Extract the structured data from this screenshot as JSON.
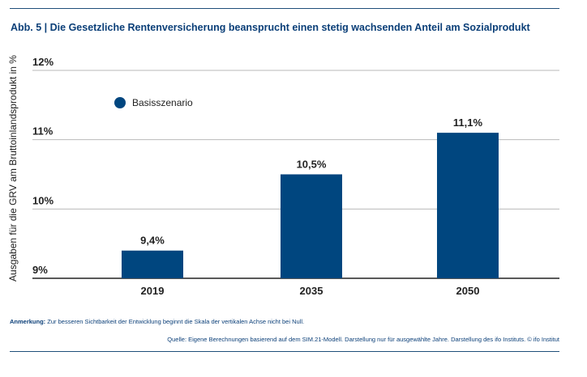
{
  "figure": {
    "title": "Abb. 5 | Die Gesetzliche Rentenversicherung beansprucht einen stetig wachsenden Anteil am Sozialprodukt",
    "note_label": "Anmerkung:",
    "note_text": "Zur besseren Sichtbarkeit der Entwicklung beginnt die Skala der vertikalen Achse nicht bei Null.",
    "source": "Quelle: Eigene Berechnungen basierend auf dem SIM.21-Modell. Darstellung nur für ausgewählte Jahre. Darstellung des ifo Instituts. © ifo Institut"
  },
  "colors": {
    "bar": "#00467f",
    "title": "#0b3f78",
    "grid": "#b9b9b9"
  },
  "chart_data": {
    "type": "bar",
    "categories": [
      "2019",
      "2035",
      "2050"
    ],
    "series": [
      {
        "name": "Basisszenario",
        "values": [
          9.4,
          10.5,
          11.1
        ]
      }
    ],
    "value_labels": [
      "9,4%",
      "10,5%",
      "11,1%"
    ],
    "yticks": [
      9,
      10,
      11,
      12
    ],
    "ytick_labels": [
      "9%",
      "10%",
      "11%",
      "12%"
    ],
    "ylim": [
      9,
      12
    ],
    "ylabel": "Ausgaben für die GRV am Bruttoinlandsprodukt in %",
    "xlabel": "",
    "legend_position": "top-left",
    "grid": true
  }
}
